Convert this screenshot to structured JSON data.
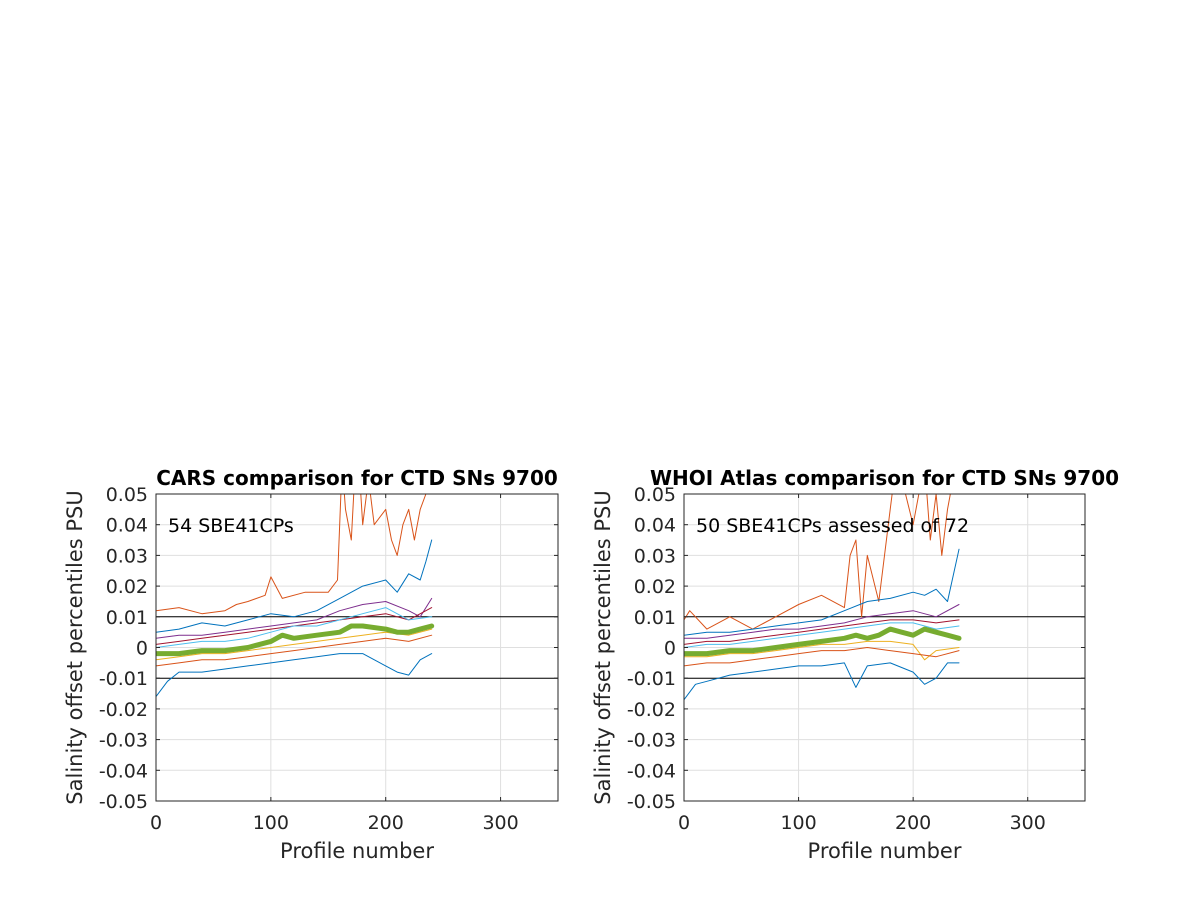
{
  "chart_data": [
    {
      "type": "line",
      "title": "CARS comparison for CTD SNs 9700",
      "xlabel": "Profile number",
      "ylabel": "Salinity offset percentiles PSU",
      "annotation": "54 SBE41CPs",
      "xlim": [
        0,
        350
      ],
      "ylim": [
        -0.05,
        0.05
      ],
      "xticks": [
        0,
        100,
        200,
        300
      ],
      "yticks": [
        -0.05,
        -0.04,
        -0.03,
        -0.02,
        -0.01,
        0,
        0.01,
        0.02,
        0.03,
        0.04,
        0.05
      ],
      "ytick_labels": [
        "-0.05",
        "-0.04",
        "-0.03",
        "-0.02",
        "-0.01",
        "0",
        "0.01",
        "0.02",
        "0.03",
        "0.04",
        "0.05"
      ],
      "reference_lines": [
        0.01,
        -0.01
      ],
      "grid": true,
      "series": [
        {
          "color": "#D95319",
          "width": 1,
          "x": [
            0,
            20,
            40,
            60,
            70,
            80,
            95,
            100,
            110,
            130,
            150,
            158,
            162,
            165,
            170,
            175,
            180,
            185,
            190,
            200,
            205,
            210,
            215,
            220,
            225,
            230,
            235,
            240
          ],
          "y": [
            0.012,
            0.013,
            0.011,
            0.012,
            0.014,
            0.015,
            0.017,
            0.023,
            0.016,
            0.018,
            0.018,
            0.022,
            0.06,
            0.045,
            0.035,
            0.07,
            0.04,
            0.055,
            0.04,
            0.045,
            0.035,
            0.03,
            0.04,
            0.045,
            0.035,
            0.045,
            0.05,
            0.052
          ]
        },
        {
          "color": "#0072BD",
          "width": 1,
          "x": [
            0,
            20,
            40,
            60,
            80,
            100,
            120,
            140,
            160,
            180,
            200,
            210,
            220,
            230,
            235,
            240
          ],
          "y": [
            0.005,
            0.006,
            0.008,
            0.007,
            0.009,
            0.011,
            0.01,
            0.012,
            0.016,
            0.02,
            0.022,
            0.018,
            0.024,
            0.022,
            0.028,
            0.035
          ]
        },
        {
          "color": "#7E2F8E",
          "width": 1,
          "x": [
            0,
            20,
            40,
            60,
            80,
            100,
            120,
            140,
            160,
            180,
            200,
            220,
            230,
            240
          ],
          "y": [
            0.003,
            0.004,
            0.004,
            0.005,
            0.006,
            0.007,
            0.008,
            0.009,
            0.012,
            0.014,
            0.015,
            0.012,
            0.01,
            0.016
          ]
        },
        {
          "color": "#A2142F",
          "width": 1,
          "x": [
            0,
            20,
            40,
            60,
            80,
            100,
            120,
            140,
            160,
            180,
            200,
            220,
            240
          ],
          "y": [
            0.001,
            0.002,
            0.003,
            0.004,
            0.005,
            0.006,
            0.007,
            0.008,
            0.009,
            0.01,
            0.011,
            0.009,
            0.013
          ]
        },
        {
          "color": "#4DBEEE",
          "width": 1,
          "x": [
            0,
            20,
            40,
            60,
            80,
            100,
            120,
            140,
            160,
            180,
            200,
            220,
            240
          ],
          "y": [
            0,
            0.001,
            0.002,
            0.002,
            0.003,
            0.005,
            0.007,
            0.007,
            0.009,
            0.011,
            0.013,
            0.009,
            0.01
          ]
        },
        {
          "color": "#EDB120",
          "width": 1,
          "x": [
            0,
            20,
            40,
            60,
            80,
            100,
            120,
            140,
            160,
            180,
            200,
            220,
            240
          ],
          "y": [
            -0.004,
            -0.003,
            -0.002,
            -0.002,
            -0.001,
            0,
            0.001,
            0.002,
            0.003,
            0.004,
            0.005,
            0.004,
            0.006
          ]
        },
        {
          "color": "#D95319",
          "width": 1,
          "x": [
            0,
            20,
            40,
            60,
            80,
            100,
            120,
            140,
            160,
            180,
            200,
            220,
            240
          ],
          "y": [
            -0.006,
            -0.005,
            -0.004,
            -0.004,
            -0.003,
            -0.002,
            -0.001,
            0,
            0.001,
            0.002,
            0.003,
            0.002,
            0.004
          ]
        },
        {
          "color": "#0072BD",
          "width": 1,
          "x": [
            0,
            10,
            20,
            40,
            60,
            80,
            100,
            120,
            140,
            160,
            180,
            200,
            210,
            220,
            230,
            240
          ],
          "y": [
            -0.016,
            -0.011,
            -0.008,
            -0.008,
            -0.007,
            -0.006,
            -0.005,
            -0.004,
            -0.003,
            -0.002,
            -0.002,
            -0.006,
            -0.008,
            -0.009,
            -0.004,
            -0.002
          ]
        },
        {
          "color": "#77AC30",
          "width": 5,
          "x": [
            0,
            20,
            40,
            60,
            80,
            100,
            110,
            120,
            140,
            160,
            170,
            180,
            200,
            210,
            220,
            230,
            240
          ],
          "y": [
            -0.002,
            -0.002,
            -0.001,
            -0.001,
            0,
            0.002,
            0.004,
            0.003,
            0.004,
            0.005,
            0.007,
            0.007,
            0.006,
            0.005,
            0.005,
            0.006,
            0.007
          ]
        }
      ]
    },
    {
      "type": "line",
      "title": "WHOI Atlas comparison for CTD SNs 9700",
      "xlabel": "Profile number",
      "ylabel": "Salinity offset percentiles PSU",
      "annotation": "50 SBE41CPs assessed of 72",
      "xlim": [
        0,
        350
      ],
      "ylim": [
        -0.05,
        0.05
      ],
      "xticks": [
        0,
        100,
        200,
        300
      ],
      "yticks": [
        -0.05,
        -0.04,
        -0.03,
        -0.02,
        -0.01,
        0,
        0.01,
        0.02,
        0.03,
        0.04,
        0.05
      ],
      "ytick_labels": [
        "-0.05",
        "-0.04",
        "-0.03",
        "-0.02",
        "-0.01",
        "0",
        "0.01",
        "0.02",
        "0.03",
        "0.04",
        "0.05"
      ],
      "reference_lines": [
        0.01,
        -0.01
      ],
      "grid": true,
      "series": [
        {
          "color": "#D95319",
          "width": 1,
          "x": [
            0,
            5,
            20,
            40,
            60,
            80,
            100,
            120,
            140,
            145,
            150,
            155,
            160,
            170,
            180,
            185,
            190,
            200,
            210,
            215,
            220,
            225,
            230,
            235,
            240
          ],
          "y": [
            0.009,
            0.012,
            0.006,
            0.01,
            0.006,
            0.01,
            0.014,
            0.017,
            0.013,
            0.03,
            0.035,
            0.01,
            0.03,
            0.015,
            0.045,
            0.06,
            0.055,
            0.04,
            0.06,
            0.035,
            0.05,
            0.03,
            0.045,
            0.055,
            0.06
          ]
        },
        {
          "color": "#0072BD",
          "width": 1,
          "x": [
            0,
            20,
            40,
            60,
            80,
            100,
            120,
            140,
            160,
            180,
            200,
            210,
            220,
            230,
            240
          ],
          "y": [
            0.004,
            0.005,
            0.005,
            0.006,
            0.007,
            0.008,
            0.009,
            0.012,
            0.015,
            0.016,
            0.018,
            0.017,
            0.019,
            0.015,
            0.032
          ]
        },
        {
          "color": "#7E2F8E",
          "width": 1,
          "x": [
            0,
            20,
            40,
            60,
            80,
            100,
            120,
            140,
            160,
            180,
            200,
            220,
            240
          ],
          "y": [
            0.003,
            0.003,
            0.004,
            0.005,
            0.006,
            0.006,
            0.007,
            0.008,
            0.01,
            0.011,
            0.012,
            0.01,
            0.014
          ]
        },
        {
          "color": "#A2142F",
          "width": 1,
          "x": [
            0,
            20,
            40,
            60,
            80,
            100,
            120,
            140,
            160,
            180,
            200,
            220,
            240
          ],
          "y": [
            0.001,
            0.002,
            0.002,
            0.003,
            0.004,
            0.005,
            0.006,
            0.007,
            0.008,
            0.009,
            0.009,
            0.008,
            0.009
          ]
        },
        {
          "color": "#4DBEEE",
          "width": 1,
          "x": [
            0,
            20,
            40,
            60,
            80,
            100,
            120,
            140,
            160,
            180,
            200,
            220,
            240
          ],
          "y": [
            0,
            0.001,
            0.001,
            0.002,
            0.003,
            0.004,
            0.005,
            0.006,
            0.007,
            0.008,
            0.008,
            0.006,
            0.007
          ]
        },
        {
          "color": "#EDB120",
          "width": 1,
          "x": [
            0,
            20,
            40,
            60,
            80,
            100,
            120,
            140,
            160,
            180,
            200,
            210,
            220,
            240
          ],
          "y": [
            -0.003,
            -0.003,
            -0.002,
            -0.002,
            -0.001,
            0,
            0.001,
            0.001,
            0.002,
            0.002,
            0.001,
            -0.004,
            -0.001,
            0
          ]
        },
        {
          "color": "#D95319",
          "width": 1,
          "x": [
            0,
            20,
            40,
            60,
            80,
            100,
            120,
            140,
            160,
            180,
            200,
            220,
            240
          ],
          "y": [
            -0.006,
            -0.005,
            -0.005,
            -0.004,
            -0.003,
            -0.002,
            -0.001,
            -0.001,
            0,
            -0.001,
            -0.002,
            -0.003,
            -0.001
          ]
        },
        {
          "color": "#0072BD",
          "width": 1,
          "x": [
            0,
            10,
            20,
            40,
            60,
            80,
            100,
            120,
            140,
            150,
            160,
            180,
            200,
            210,
            220,
            230,
            240
          ],
          "y": [
            -0.017,
            -0.012,
            -0.011,
            -0.009,
            -0.008,
            -0.007,
            -0.006,
            -0.006,
            -0.005,
            -0.013,
            -0.006,
            -0.005,
            -0.008,
            -0.012,
            -0.01,
            -0.005,
            -0.005
          ]
        },
        {
          "color": "#77AC30",
          "width": 5,
          "x": [
            0,
            20,
            40,
            60,
            80,
            100,
            120,
            140,
            150,
            160,
            170,
            180,
            190,
            200,
            210,
            220,
            230,
            240
          ],
          "y": [
            -0.002,
            -0.002,
            -0.001,
            -0.001,
            0,
            0.001,
            0.002,
            0.003,
            0.004,
            0.003,
            0.004,
            0.006,
            0.005,
            0.004,
            0.006,
            0.005,
            0.004,
            0.003
          ]
        }
      ]
    }
  ]
}
